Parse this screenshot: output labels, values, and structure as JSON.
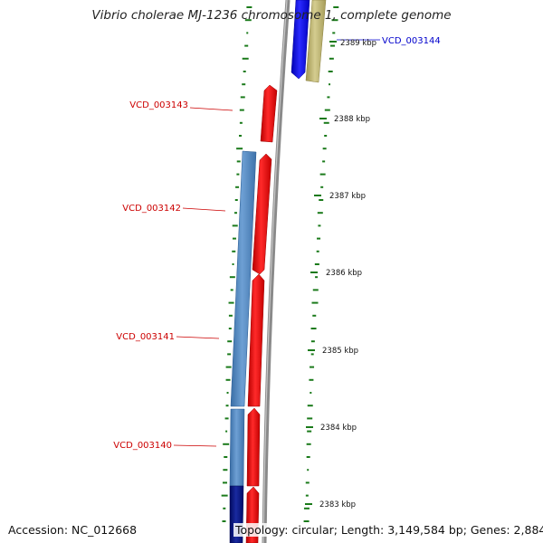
{
  "title": "Vibrio cholerae MJ-1236 chromosome 1, complete genome",
  "accession": "Accession: NC_012668",
  "topology": "Topology: circular; Length: 3,149,584 bp; Genes: 2,884",
  "ticks": [
    "2389 kbp",
    "2388 kbp",
    "2387 kbp",
    "2386 kbp",
    "2385 kbp",
    "2384 kbp",
    "2383 kbp"
  ],
  "genes": [
    {
      "id": "VCD_003144",
      "color": "#0000cc"
    },
    {
      "id": "VCD_003143",
      "color": "#cc0000"
    },
    {
      "id": "VCD_003142",
      "color": "#cc0000"
    },
    {
      "id": "VCD_003141",
      "color": "#cc0000"
    },
    {
      "id": "VCD_003140",
      "color": "#cc0000"
    }
  ],
  "colors": {
    "gene_red": "#ee1111",
    "gene_blue": "#1a1aee",
    "gene_steel": "#4a80b8",
    "gene_navy": "#0a1a80",
    "gene_olive": "#b8ae6a",
    "backbone": "#8a8a8a",
    "gc_ticks": "#1a7a1a",
    "label_red": "#cc0000",
    "label_blue": "#0000cc"
  }
}
